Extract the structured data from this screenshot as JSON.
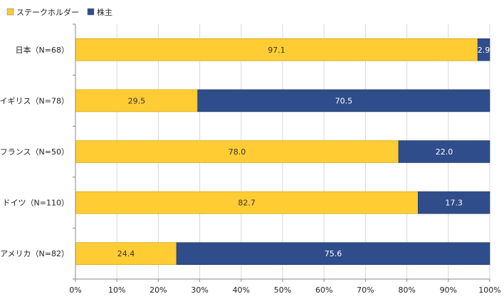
{
  "chart_data": {
    "type": "bar",
    "orientation": "horizontal",
    "stacked": "percent",
    "categories": [
      "日本（N=68）",
      "イギリス（N=78）",
      "フランス（N=50）",
      "ドイツ（N=110）",
      "アメリカ（N=82）"
    ],
    "series": [
      {
        "name": "ステークホルダー",
        "color": "#FFCC33",
        "label_color": "#333333",
        "values": [
          97.1,
          29.5,
          78.0,
          82.7,
          24.4
        ]
      },
      {
        "name": "株主",
        "color": "#2F4D8A",
        "label_color": "#ffffff",
        "values": [
          2.9,
          70.5,
          22.0,
          17.3,
          75.6
        ]
      }
    ],
    "xlim": [
      0,
      100
    ],
    "xticks": [
      "0%",
      "10%",
      "20%",
      "30%",
      "40%",
      "50%",
      "60%",
      "70%",
      "80%",
      "90%",
      "100%"
    ],
    "grid": "vertical",
    "legend": "top-left"
  }
}
